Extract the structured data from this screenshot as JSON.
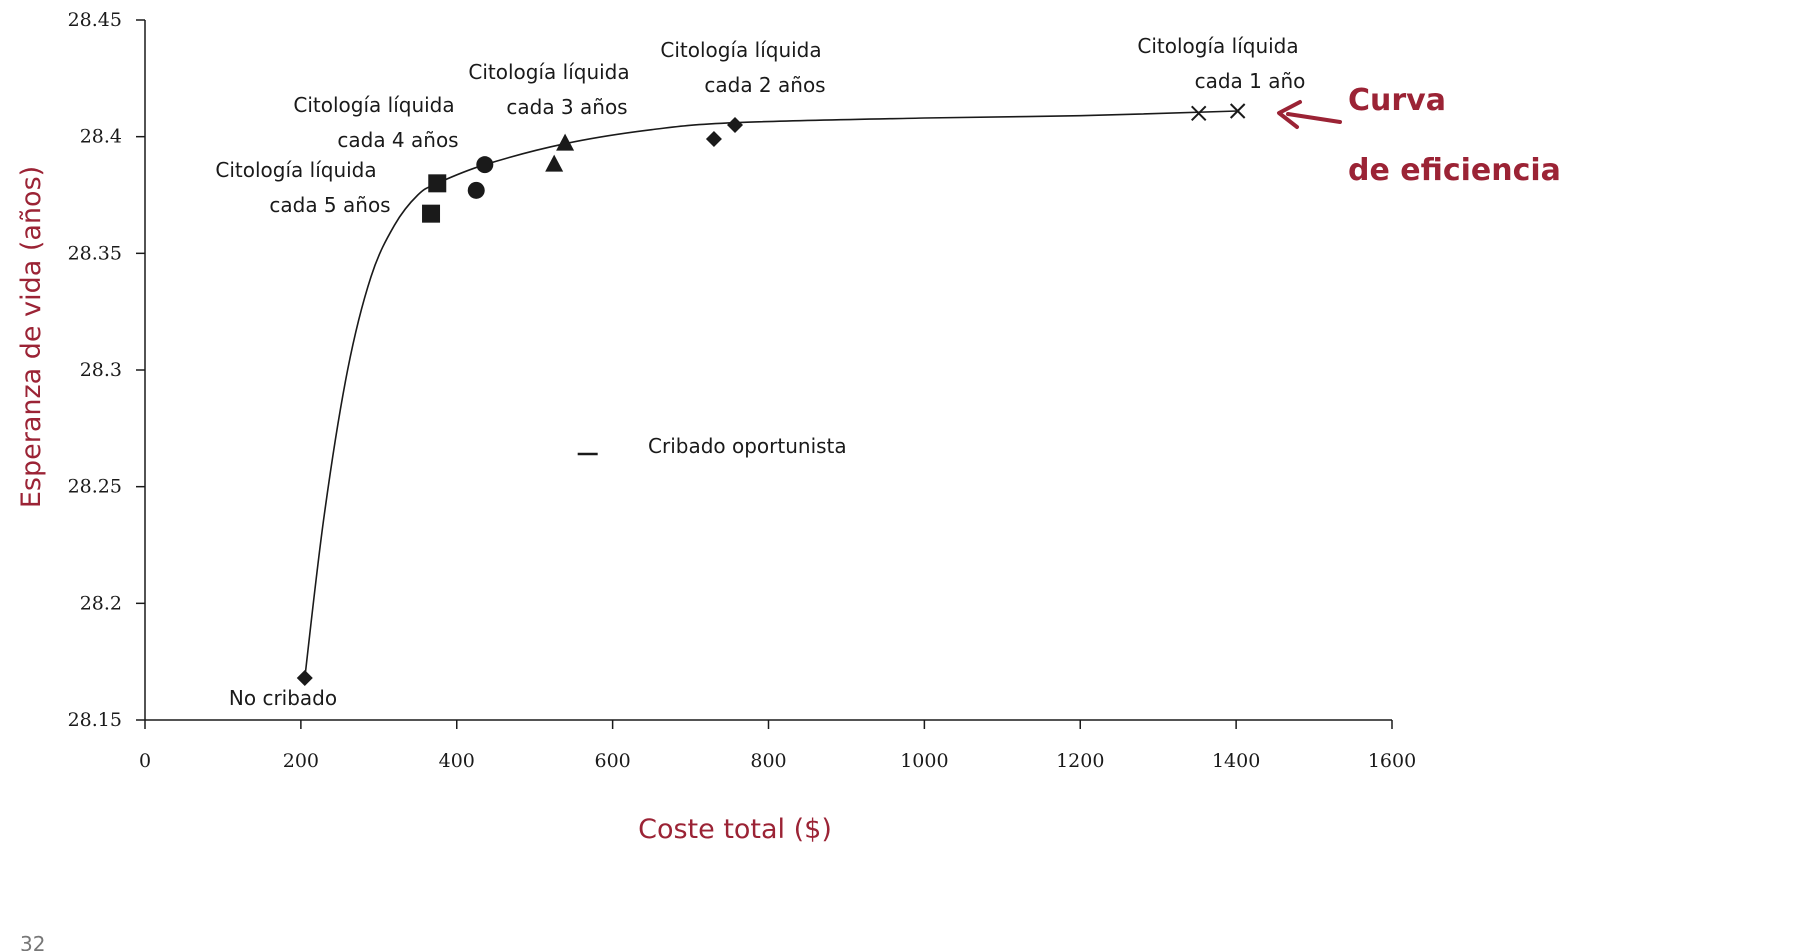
{
  "chart_data": {
    "type": "scatter",
    "xlabel": "Coste total ($)",
    "ylabel": "Esperanza de vida (años)",
    "xlim": [
      0,
      1600
    ],
    "ylim": [
      28.15,
      28.45
    ],
    "x_ticks": [
      0,
      200,
      400,
      600,
      800,
      1000,
      1200,
      1400,
      1600
    ],
    "y_ticks": [
      28.15,
      28.2,
      28.25,
      28.3,
      28.35,
      28.4,
      28.45
    ],
    "y_tick_labels": [
      "28.15",
      "28.2",
      "28.25",
      "28.3",
      "28.35",
      "28.4",
      "28.45"
    ],
    "grid": false,
    "colors": {
      "accent": "#9b2335",
      "ink": "#1a1a1a"
    },
    "series": [
      {
        "marker": "diamond",
        "points": [
          [
            205,
            28.168
          ],
          [
            730,
            28.399
          ],
          [
            757,
            28.405
          ]
        ]
      },
      {
        "marker": "square",
        "points": [
          [
            367,
            28.367
          ],
          [
            375,
            28.38
          ]
        ]
      },
      {
        "marker": "circle",
        "points": [
          [
            425,
            28.377
          ],
          [
            436,
            28.388
          ]
        ]
      },
      {
        "marker": "triangle",
        "points": [
          [
            525,
            28.388
          ],
          [
            539,
            28.397
          ]
        ]
      },
      {
        "marker": "x",
        "points": [
          [
            1352,
            28.41
          ],
          [
            1402,
            28.411
          ]
        ]
      },
      {
        "marker": "dash",
        "points": [
          [
            568,
            28.264
          ]
        ]
      }
    ],
    "efficiency_curve": [
      [
        205,
        28.168
      ],
      [
        230,
        28.238
      ],
      [
        260,
        28.3
      ],
      [
        290,
        28.34
      ],
      [
        320,
        28.362
      ],
      [
        350,
        28.375
      ],
      [
        375,
        28.38
      ],
      [
        436,
        28.388
      ],
      [
        539,
        28.397
      ],
      [
        650,
        28.403
      ],
      [
        757,
        28.406
      ],
      [
        1000,
        28.408
      ],
      [
        1200,
        28.409
      ],
      [
        1402,
        28.411
      ]
    ],
    "annotations": [
      {
        "id": "no-cribado",
        "lines": [
          "No cribado"
        ]
      },
      {
        "id": "citologia-5",
        "lines": [
          "Citología líquida",
          "cada 5 años"
        ]
      },
      {
        "id": "citologia-4",
        "lines": [
          "Citología líquida",
          "cada 4 años"
        ]
      },
      {
        "id": "citologia-3",
        "lines": [
          "Citología líquida",
          "cada 3 años"
        ]
      },
      {
        "id": "citologia-2",
        "lines": [
          "Citología líquida",
          "cada 2 años"
        ]
      },
      {
        "id": "citologia-1",
        "lines": [
          "Citología líquida",
          "cada 1 año"
        ]
      },
      {
        "id": "cribado-oportunista",
        "lines": [
          "Cribado oportunista"
        ]
      }
    ],
    "callout": {
      "lines": [
        "Curva",
        "de eficiencia"
      ]
    }
  },
  "page_number": "32"
}
